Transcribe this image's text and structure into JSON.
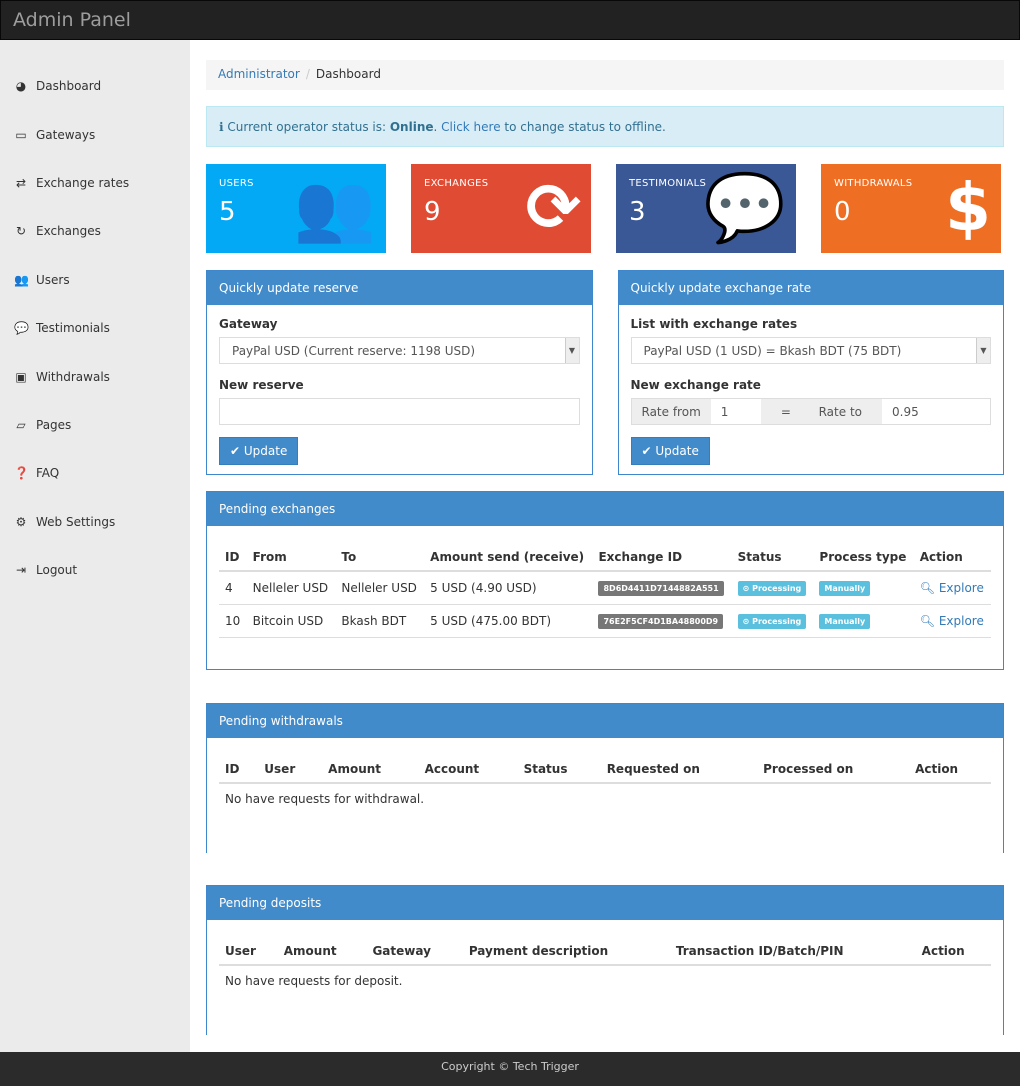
{
  "header": {
    "title": "Admin Panel"
  },
  "sidebar": {
    "items": [
      {
        "label": "Dashboard",
        "icon": "dashboard-icon",
        "glyph": "◕"
      },
      {
        "label": "Gateways",
        "icon": "credit-card-icon",
        "glyph": "▭"
      },
      {
        "label": "Exchange rates",
        "icon": "exchange-icon",
        "glyph": "⇄"
      },
      {
        "label": "Exchanges",
        "icon": "refresh-icon",
        "glyph": "↻"
      },
      {
        "label": "Users",
        "icon": "users-icon",
        "glyph": "👥"
      },
      {
        "label": "Testimonials",
        "icon": "comments-icon",
        "glyph": "💬"
      },
      {
        "label": "Withdrawals",
        "icon": "money-icon",
        "glyph": "▣"
      },
      {
        "label": "Pages",
        "icon": "folder-icon",
        "glyph": "▱"
      },
      {
        "label": "FAQ",
        "icon": "question-icon",
        "glyph": "❓"
      },
      {
        "label": "Web Settings",
        "icon": "cogs-icon",
        "glyph": "⚙"
      },
      {
        "label": "Logout",
        "icon": "sign-out-icon",
        "glyph": "⇥"
      }
    ]
  },
  "breadcrumb": {
    "root": "Administrator",
    "sep": "/",
    "current": "Dashboard"
  },
  "alert": {
    "prefix": "Current operator status is: ",
    "status": "Online",
    "dot": ". ",
    "link": "Click here",
    "suffix": " to change status to offline."
  },
  "stats": [
    {
      "label": "USERS",
      "value": "5",
      "color": "#03a9f4",
      "icon": "users-icon",
      "glyph": "👥"
    },
    {
      "label": "EXCHANGES",
      "value": "9",
      "color": "#e04b33",
      "icon": "refresh-icon",
      "glyph": "⟳"
    },
    {
      "label": "TESTIMONIALS",
      "value": "3",
      "color": "#3a5796",
      "icon": "comments-icon",
      "glyph": "💬"
    },
    {
      "label": "WITHDRAWALS",
      "value": "0",
      "color": "#ee6e24",
      "icon": "dollar-icon",
      "glyph": "$"
    }
  ],
  "reserve": {
    "title": "Quickly update reserve",
    "gateway_label": "Gateway",
    "gateway_value": "PayPal USD (Current reserve: 1198 USD)",
    "new_label": "New reserve",
    "new_value": "",
    "button": "✔ Update"
  },
  "rate": {
    "title": "Quickly update exchange rate",
    "list_label": "List with exchange rates",
    "list_value": "PayPal USD (1 USD) = Bkash BDT (75 BDT)",
    "new_label": "New exchange rate",
    "from_label": "Rate from",
    "from_value": "1",
    "eq": "=",
    "to_label": "Rate to",
    "to_value": "0.95",
    "button": "✔ Update"
  },
  "exchanges": {
    "title": "Pending exchanges",
    "headers": [
      "ID",
      "From",
      "To",
      "Amount send (receive)",
      "Exchange ID",
      "Status",
      "Process type",
      "Action"
    ],
    "rows": [
      {
        "id": "4",
        "from": "Nelleler USD",
        "to": "Nelleler USD",
        "amount": "5 USD (4.90 USD)",
        "exid": "8D6D4411D7144882A551",
        "status": "⊙ Processing",
        "ptype": "Manually",
        "action": "Explore"
      },
      {
        "id": "10",
        "from": "Bitcoin USD",
        "to": "Bkash BDT",
        "amount": "5 USD (475.00 BDT)",
        "exid": "76E2F5CF4D1BA48800D9",
        "status": "⊙ Processing",
        "ptype": "Manually",
        "action": "Explore"
      }
    ]
  },
  "withdrawals": {
    "title": "Pending withdrawals",
    "headers": [
      "ID",
      "User",
      "Amount",
      "Account",
      "Status",
      "Requested on",
      "Processed on",
      "Action"
    ],
    "empty": "No have requests for withdrawal."
  },
  "deposits": {
    "title": "Pending deposits",
    "headers": [
      "User",
      "Amount",
      "Gateway",
      "Payment description",
      "Transaction ID/Batch/PIN",
      "Action"
    ],
    "empty": "No have requests for deposit."
  },
  "footer": {
    "text": "Copyright © Tech Trigger"
  }
}
